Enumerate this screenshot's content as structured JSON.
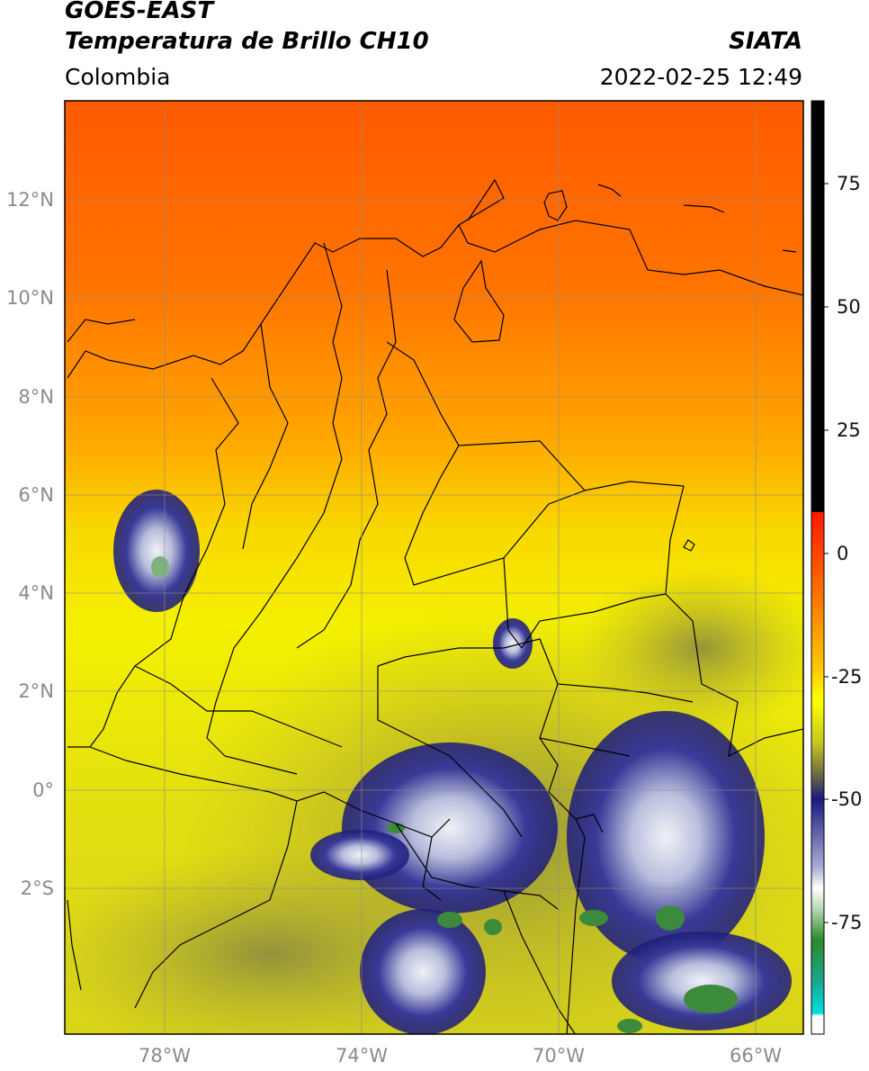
{
  "header": {
    "satellite": "GOES-EAST",
    "product": "Temperatura de Brillo CH10",
    "agency": "SIATA",
    "region": "Colombia",
    "datetime": "2022-02-25 12:49"
  },
  "map": {
    "lat_ticks": [
      "12°N",
      "10°N",
      "8°N",
      "6°N",
      "4°N",
      "2°N",
      "0°",
      "2°S"
    ],
    "lon_ticks": [
      "78°W",
      "74°W",
      "70°W",
      "66°W"
    ],
    "colors": {
      "warm_top": "#ff5a00",
      "orange": "#ff9a00",
      "yellow": "#f4f000",
      "olive": "#b8b030",
      "navy": "#1b1b7a",
      "cloud_white": "#eef0f8",
      "green": "#3c8a3c",
      "border": "#000000",
      "grid": "#8c8c8c"
    }
  },
  "colorbar": {
    "ticks": [
      "75",
      "50",
      "25",
      "0",
      "-25",
      "-50",
      "-75"
    ],
    "colors": {
      "black": "#000000",
      "red": "#ff2000",
      "orange": "#ff9a00",
      "yellow": "#ffff00",
      "olive": "#a0a040",
      "navy": "#1a1a80",
      "white": "#ffffff",
      "green": "#2a8a2a",
      "cyan": "#00e0e0"
    }
  }
}
